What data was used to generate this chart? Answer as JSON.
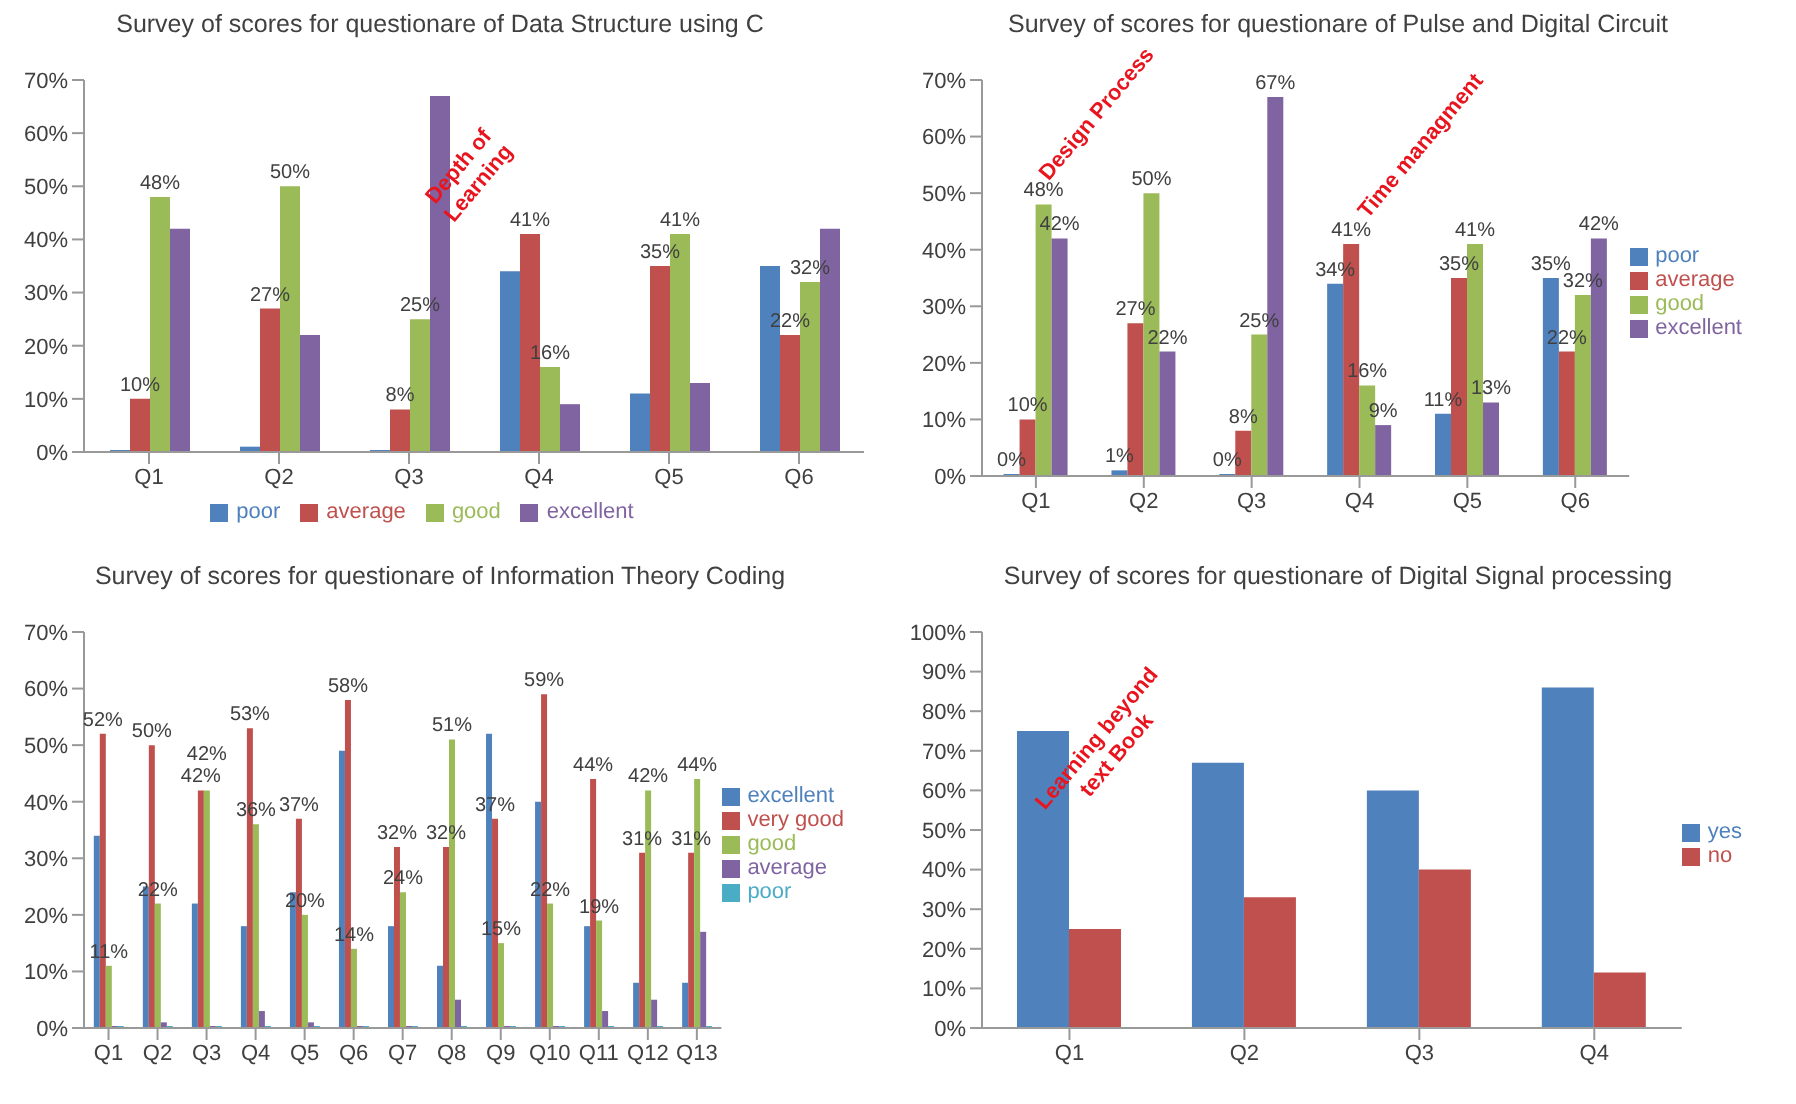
{
  "chart_data": [
    {
      "type": "bar",
      "title": "Survey of scores for questionare of  Data Structure using C",
      "categories": [
        "Q1",
        "Q2",
        "Q3",
        "Q4",
        "Q5",
        "Q6"
      ],
      "series": [
        {
          "name": "poor",
          "color": "#4f81bd",
          "values": [
            0,
            1,
            0,
            34,
            11,
            35
          ]
        },
        {
          "name": "average",
          "color": "#c0504d",
          "values": [
            10,
            27,
            8,
            41,
            35,
            22
          ],
          "value_labels": [
            "10%",
            "27%",
            "8%",
            "41%",
            "35%",
            "22%"
          ]
        },
        {
          "name": "good",
          "color": "#9bbb59",
          "values": [
            48,
            50,
            25,
            16,
            41,
            32
          ],
          "value_labels": [
            "48%",
            "50%",
            "25%",
            "16%",
            "41%",
            "32%"
          ]
        },
        {
          "name": "excellent",
          "color": "#8064a2",
          "values": [
            42,
            22,
            67,
            9,
            13,
            42
          ]
        }
      ],
      "ylim": [
        0,
        70
      ],
      "yticks": [
        {
          "value": 0,
          "label": "0%"
        },
        {
          "value": 10,
          "label": "10%"
        },
        {
          "value": 20,
          "label": "20%"
        },
        {
          "value": 30,
          "label": "30%"
        },
        {
          "value": 40,
          "label": "40%"
        },
        {
          "value": 50,
          "label": "50%"
        },
        {
          "value": 60,
          "label": "60%"
        },
        {
          "value": 70,
          "label": "70%"
        }
      ],
      "annotations": [
        "Depth of Learning"
      ],
      "legend": "bottom"
    },
    {
      "type": "bar",
      "title": "Survey of scores for questionare of  Pulse and Digital Circuit",
      "categories": [
        "Q1",
        "Q2",
        "Q3",
        "Q4",
        "Q5",
        "Q6"
      ],
      "series": [
        {
          "name": "poor",
          "color": "#4f81bd",
          "values": [
            0,
            1,
            0,
            34,
            11,
            35
          ],
          "value_labels": [
            "0%",
            "1%",
            "0%",
            "34%",
            "11%",
            "35%"
          ]
        },
        {
          "name": "average",
          "color": "#c0504d",
          "values": [
            10,
            27,
            8,
            41,
            35,
            22
          ],
          "value_labels": [
            "10%",
            "27%",
            "8%",
            "41%",
            "35%",
            "22%"
          ]
        },
        {
          "name": "good",
          "color": "#9bbb59",
          "values": [
            48,
            50,
            25,
            16,
            41,
            32
          ],
          "value_labels": [
            "48%",
            "50%",
            "25%",
            "16%",
            "41%",
            "32%"
          ]
        },
        {
          "name": "excellent",
          "color": "#8064a2",
          "values": [
            42,
            22,
            67,
            9,
            13,
            42
          ],
          "value_labels": [
            "42%",
            "22%",
            "67%",
            "9%",
            "13%",
            "42%"
          ]
        }
      ],
      "ylim": [
        0,
        70
      ],
      "yticks": [
        {
          "value": 0,
          "label": "0%"
        },
        {
          "value": 10,
          "label": "10%"
        },
        {
          "value": 20,
          "label": "20%"
        },
        {
          "value": 30,
          "label": "30%"
        },
        {
          "value": 40,
          "label": "40%"
        },
        {
          "value": 50,
          "label": "50%"
        },
        {
          "value": 60,
          "label": "60%"
        },
        {
          "value": 70,
          "label": "70%"
        }
      ],
      "annotations": [
        "Design Process",
        "Time managment"
      ],
      "legend": "right"
    },
    {
      "type": "bar",
      "title": "Survey of scores for questionare of  Information Theory Coding",
      "categories": [
        "Q1",
        "Q2",
        "Q3",
        "Q4",
        "Q5",
        "Q6",
        "Q7",
        "Q8",
        "Q9",
        "Q10",
        "Q11",
        "Q12",
        "Q13"
      ],
      "series": [
        {
          "name": "excellent",
          "color": "#4f81bd",
          "values": [
            34,
            25,
            22,
            18,
            24,
            49,
            18,
            11,
            52,
            40,
            18,
            8,
            8
          ]
        },
        {
          "name": "very good",
          "color": "#c0504d",
          "values": [
            52,
            50,
            42,
            53,
            37,
            58,
            32,
            32,
            37,
            59,
            44,
            31,
            31
          ],
          "value_labels": [
            "52%",
            "50%",
            "42%",
            "53%",
            "37%",
            "58%",
            "32%",
            "32%",
            "37%",
            "59%",
            "44%",
            "31%",
            "31%"
          ]
        },
        {
          "name": "good",
          "color": "#9bbb59",
          "values": [
            11,
            22,
            42,
            36,
            20,
            14,
            24,
            51,
            15,
            22,
            19,
            42,
            44
          ],
          "value_labels": [
            "11%",
            "22%",
            "42%",
            "36%",
            "20%",
            "14%",
            "24%",
            "51%",
            "15%",
            "22%",
            "19%",
            "42%",
            "44%"
          ]
        },
        {
          "name": "average",
          "color": "#8064a2",
          "values": [
            0,
            1,
            0,
            3,
            1,
            0,
            0,
            5,
            0,
            0,
            3,
            5,
            17
          ]
        },
        {
          "name": "poor",
          "color": "#4bacc6",
          "values": [
            0,
            0,
            0,
            0,
            0,
            0,
            0,
            0,
            0,
            0,
            0,
            0,
            0
          ]
        }
      ],
      "ylim": [
        0,
        70
      ],
      "yticks": [
        {
          "value": 0,
          "label": "0%"
        },
        {
          "value": 10,
          "label": "10%"
        },
        {
          "value": 20,
          "label": "20%"
        },
        {
          "value": 30,
          "label": "30%"
        },
        {
          "value": 40,
          "label": "40%"
        },
        {
          "value": 50,
          "label": "50%"
        },
        {
          "value": 60,
          "label": "60%"
        },
        {
          "value": 70,
          "label": "70%"
        }
      ],
      "legend": "right"
    },
    {
      "type": "bar",
      "title": "Survey of scores for questionare of  Digital Signal processing",
      "categories": [
        "Q1",
        "Q2",
        "Q3",
        "Q4"
      ],
      "series": [
        {
          "name": "yes",
          "color": "#4f81bd",
          "values": [
            75,
            67,
            60,
            86
          ]
        },
        {
          "name": "no",
          "color": "#c0504d",
          "values": [
            25,
            33,
            40,
            14
          ]
        }
      ],
      "ylim": [
        0,
        100
      ],
      "yticks": [
        {
          "value": 0,
          "label": "0%"
        },
        {
          "value": 10,
          "label": "10%"
        },
        {
          "value": 20,
          "label": "20%"
        },
        {
          "value": 30,
          "label": "30%"
        },
        {
          "value": 40,
          "label": "40%"
        },
        {
          "value": 50,
          "label": "50%"
        },
        {
          "value": 60,
          "label": "60%"
        },
        {
          "value": 70,
          "label": "70%"
        },
        {
          "value": 80,
          "label": "80%"
        },
        {
          "value": 90,
          "label": "90%"
        },
        {
          "value": 100,
          "label": "100%"
        }
      ],
      "annotations": [
        "Learning beyond text Book"
      ],
      "legend": "right"
    }
  ]
}
